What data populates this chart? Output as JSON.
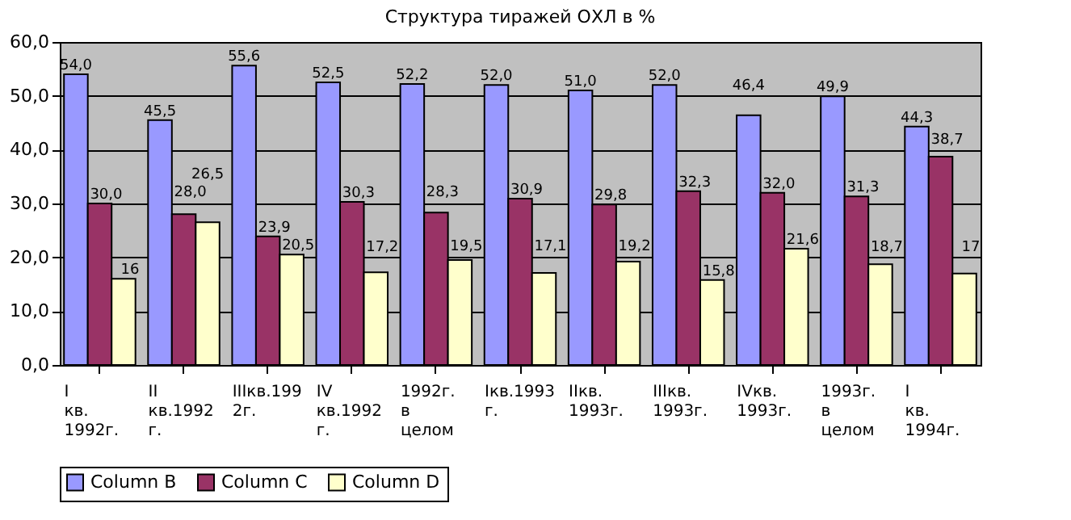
{
  "chart_data": {
    "type": "bar",
    "title": "Структура тиражей ОХЛ в %",
    "categories": [
      "I кв. 1992г.",
      "II кв.1992 г.",
      "IIIкв.1992г.",
      "IV кв.1992 г.",
      "1992г. в целом",
      "Iкв.1993 г.",
      "IIкв. 1993г.",
      "IIIкв. 1993г.",
      "IVкв. 1993г.",
      "1993г. в целом",
      "I кв. 1994г."
    ],
    "series": [
      {
        "name": "Column B",
        "color": "#9999ff",
        "values": [
          54.0,
          45.5,
          55.6,
          52.5,
          52.2,
          52.0,
          51.0,
          52.0,
          46.4,
          49.9,
          44.3
        ],
        "value_labels": [
          "54,0",
          "45,5",
          "55,6",
          "52,5",
          "52,2",
          "52,0",
          "51,0",
          "52,0",
          "46,4",
          "49,9",
          "44,3"
        ]
      },
      {
        "name": "Column C",
        "color": "#993366",
        "values": [
          30.0,
          28.0,
          23.9,
          30.3,
          28.3,
          30.9,
          29.8,
          32.3,
          32.0,
          31.3,
          38.7
        ],
        "value_labels": [
          "30,0",
          "28,0",
          "23,9",
          "30,3",
          "28,3",
          "30,9",
          "29,8",
          "32,3",
          "32,0",
          "31,3",
          "38,7"
        ]
      },
      {
        "name": "Column D",
        "color": "#ffffcc",
        "values": [
          16,
          26.5,
          20.5,
          17.2,
          19.5,
          17.1,
          19.2,
          15.8,
          21.6,
          18.7,
          17
        ],
        "value_labels": [
          "16",
          "26,5",
          "20,5",
          "17,2",
          "19,5",
          "17,1",
          "19,2",
          "15,8",
          "21,6",
          "18,7",
          "17"
        ]
      }
    ],
    "ylim": [
      0,
      60
    ],
    "yticks": [
      {
        "value": 0,
        "label": "0,0"
      },
      {
        "value": 10,
        "label": "10,0"
      },
      {
        "value": 20,
        "label": "20,0"
      },
      {
        "value": 30,
        "label": "30,0"
      },
      {
        "value": 40,
        "label": "40,0"
      },
      {
        "value": 50,
        "label": "50,0"
      },
      {
        "value": 60,
        "label": "60,0"
      }
    ],
    "grid": "y",
    "legend": "bottom"
  }
}
